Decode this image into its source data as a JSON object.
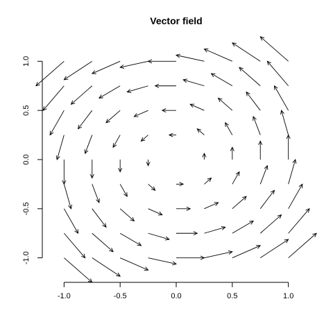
{
  "chart_data": {
    "type": "vector_field",
    "title": "Vector field",
    "xlabel": "",
    "ylabel": "",
    "x": [
      -1.0,
      -0.75,
      -0.5,
      -0.25,
      0.0,
      0.25,
      0.5,
      0.75,
      1.0
    ],
    "y": [
      -1.0,
      -0.75,
      -0.5,
      -0.25,
      0.0,
      0.25,
      0.5,
      0.75,
      1.0
    ],
    "u_formula": "u = -y",
    "v_formula": "v = x",
    "arrow_scale": 0.25,
    "xlim": [
      -1.2,
      1.2
    ],
    "ylim": [
      -1.2,
      1.2
    ],
    "x_ticks": [
      -1.0,
      -0.5,
      0.0,
      0.5,
      1.0
    ],
    "x_tick_labels": [
      "-1.0",
      "-0.5",
      "0.0",
      "0.5",
      "1.0"
    ],
    "y_ticks": [
      -1.0,
      -0.5,
      0.0,
      0.5,
      1.0
    ],
    "y_tick_labels": [
      "-1.0",
      "-0.5",
      "0.0",
      "0.5",
      "1.0"
    ],
    "grid": false,
    "legend": "none",
    "color": "#000000"
  }
}
